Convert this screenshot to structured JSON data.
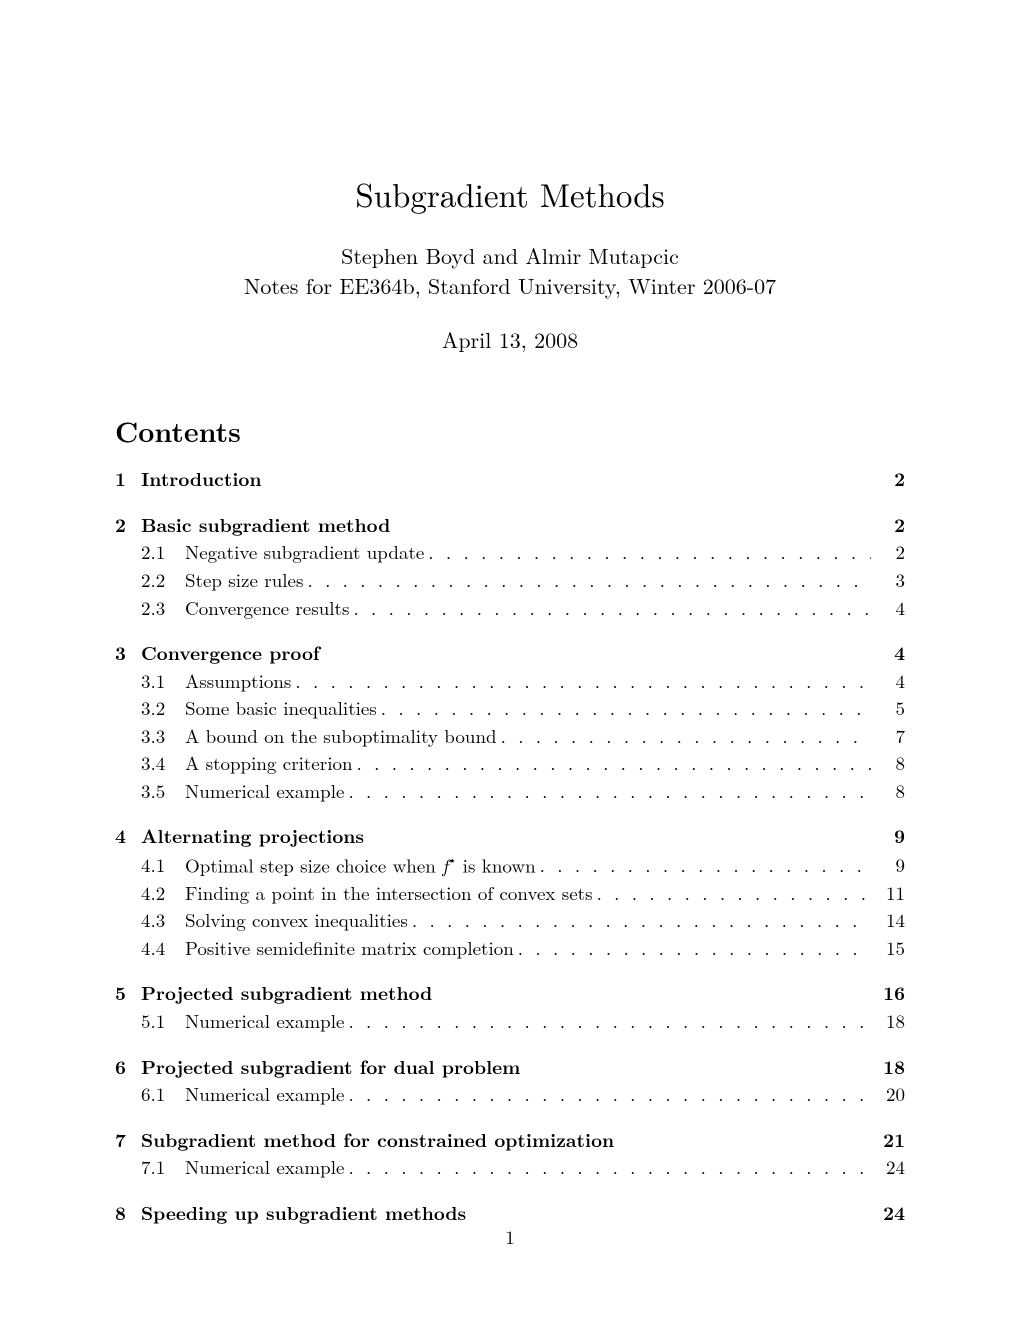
{
  "title": "Subgradient Methods",
  "authors_line1": "Stephen Boyd and Almir Mutapcic",
  "authors_line2": "Notes for EE364b, Stanford University, Winter 2006-07",
  "date": "April 13, 2008",
  "contents_heading": "Contents",
  "page_number": "1",
  "toc": [
    {
      "num": "1",
      "title": "Introduction",
      "page": "2",
      "subs": []
    },
    {
      "num": "2",
      "title": "Basic subgradient method",
      "page": "2",
      "subs": [
        {
          "num": "2.1",
          "title": "Negative subgradient update",
          "page": "2"
        },
        {
          "num": "2.2",
          "title": "Step size rules",
          "page": "3"
        },
        {
          "num": "2.3",
          "title": "Convergence results",
          "page": "4"
        }
      ]
    },
    {
      "num": "3",
      "title": "Convergence proof",
      "page": "4",
      "subs": [
        {
          "num": "3.1",
          "title": "Assumptions",
          "page": "4"
        },
        {
          "num": "3.2",
          "title": "Some basic inequalities",
          "page": "5"
        },
        {
          "num": "3.3",
          "title": "A bound on the suboptimality bound",
          "page": "7"
        },
        {
          "num": "3.4",
          "title": "A stopping criterion",
          "page": "8"
        },
        {
          "num": "3.5",
          "title": "Numerical example",
          "page": "8"
        }
      ]
    },
    {
      "num": "4",
      "title": "Alternating projections",
      "page": "9",
      "subs": [
        {
          "num": "4.1",
          "title_html": "Optimal step size choice when <span class=\"fstar\">f</span><sup class=\"star\">⋆</sup> is known",
          "page": "9"
        },
        {
          "num": "4.2",
          "title": "Finding a point in the intersection of convex sets",
          "page": "11"
        },
        {
          "num": "4.3",
          "title": "Solving convex inequalities",
          "page": "14"
        },
        {
          "num": "4.4",
          "title": "Positive semidefinite matrix completion",
          "page": "15"
        }
      ]
    },
    {
      "num": "5",
      "title": "Projected subgradient method",
      "page": "16",
      "subs": [
        {
          "num": "5.1",
          "title": "Numerical example",
          "page": "18"
        }
      ]
    },
    {
      "num": "6",
      "title": "Projected subgradient for dual problem",
      "page": "18",
      "subs": [
        {
          "num": "6.1",
          "title": "Numerical example",
          "page": "20"
        }
      ]
    },
    {
      "num": "7",
      "title": "Subgradient method for constrained optimization",
      "page": "21",
      "subs": [
        {
          "num": "7.1",
          "title": "Numerical example",
          "page": "24"
        }
      ]
    },
    {
      "num": "8",
      "title": "Speeding up subgradient methods",
      "page": "24",
      "subs": []
    }
  ]
}
